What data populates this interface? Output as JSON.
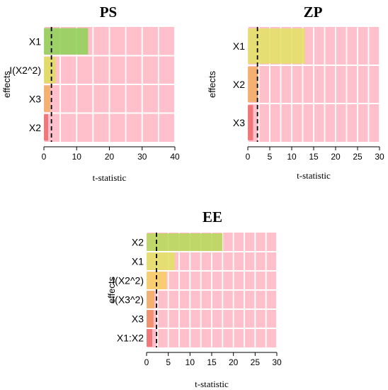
{
  "chart_data": [
    {
      "type": "bar",
      "orientation": "horizontal",
      "title": "PS",
      "xlabel": "t-statistic",
      "ylabel": "effects",
      "xlim": [
        0,
        40
      ],
      "xticks": [
        0,
        10,
        20,
        30,
        40
      ],
      "categories": [
        "X1",
        "I(X2^2)",
        "X3",
        "X2"
      ],
      "values": [
        13.5,
        3.6,
        1.9,
        1.3
      ],
      "colors": [
        "#8fd35a",
        "#dede5e",
        "#f1ad64",
        "#ef6c6c"
      ],
      "reference_line": 2.3,
      "grid": true,
      "background": "#ffc0cb"
    },
    {
      "type": "bar",
      "orientation": "horizontal",
      "title": "ZP",
      "xlabel": "t-statistic",
      "ylabel": "effects",
      "xlim": [
        0,
        30
      ],
      "xticks": [
        0,
        5,
        10,
        15,
        20,
        25,
        30
      ],
      "categories": [
        "X1",
        "X2",
        "X3"
      ],
      "values": [
        13.0,
        2.3,
        1.2
      ],
      "colors": [
        "#e2e167",
        "#f1ad64",
        "#ef6c6c"
      ],
      "reference_line": 2.2,
      "grid": true,
      "background": "#ffc0cb"
    },
    {
      "type": "bar",
      "orientation": "horizontal",
      "title": "EE",
      "xlabel": "t-statistic",
      "ylabel": "effects",
      "xlim": [
        0,
        30
      ],
      "xticks": [
        0,
        5,
        10,
        15,
        20,
        25,
        30
      ],
      "categories": [
        "X2",
        "X1",
        "I(X2^2)",
        "I(X3^2)",
        "X3",
        "X1:X2"
      ],
      "values": [
        17.5,
        6.5,
        4.6,
        1.8,
        1.6,
        1.3
      ],
      "colors": [
        "#b8d85a",
        "#e2e167",
        "#f7cd64",
        "#f1ad64",
        "#f08a62",
        "#ef6c6c"
      ],
      "reference_line": 2.3,
      "grid": true,
      "background": "#ffc0cb"
    }
  ]
}
